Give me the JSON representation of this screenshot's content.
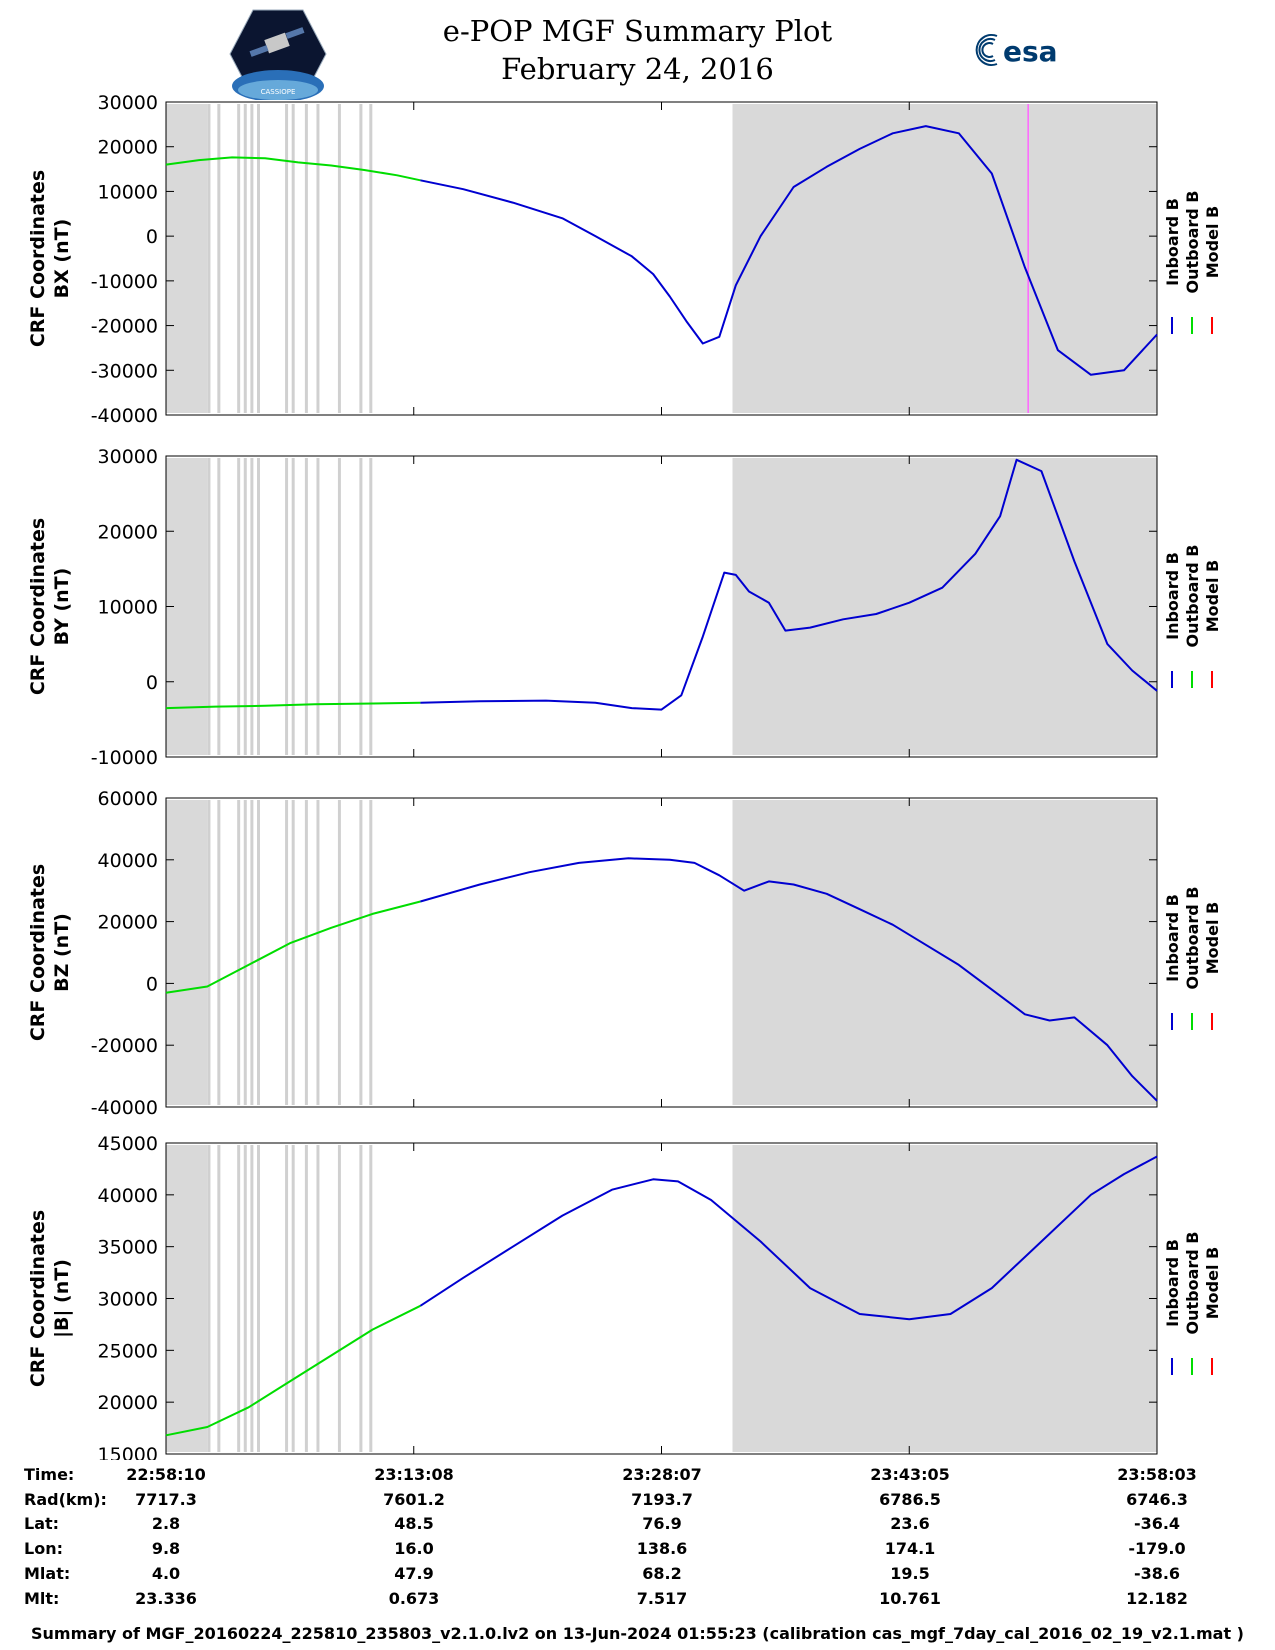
{
  "header": {
    "title_line1": "e-POP MGF Summary Plot",
    "title_line2": "February 24, 2016",
    "logo_left_text": "CASSIOPE",
    "logo_right_text": "esa"
  },
  "colors": {
    "inboard": "#0000d0",
    "outboard": "#00dd00",
    "model": "#ff0000",
    "shade": "#d9d9d9",
    "vline": "#d0d0d0",
    "marker": "#ff66ff"
  },
  "chart_data": [
    {
      "type": "line",
      "name": "bx",
      "ylabel_line1": "CRF Coordinates",
      "ylabel_line2": "BX (nT)",
      "ylim": [
        -40000,
        30000
      ],
      "yticks": [
        30000,
        20000,
        10000,
        0,
        -10000,
        -20000,
        -30000,
        -40000
      ],
      "legend": [
        "Inboard B",
        "Outboard B",
        "Model B"
      ],
      "outboard": {
        "t": [
          0,
          2,
          4,
          6,
          8,
          10,
          12,
          14,
          15.4
        ],
        "y": [
          16000,
          17000,
          17600,
          17400,
          16500,
          15800,
          14800,
          13600,
          12500
        ]
      },
      "inboard": {
        "t": [
          15.4,
          18,
          21,
          24,
          26,
          28.2,
          29.5,
          30.5,
          31.5,
          32.5,
          33.5,
          34.5,
          36,
          38,
          40,
          42,
          44,
          46,
          48,
          50,
          52,
          54,
          56,
          58,
          60
        ],
        "y": [
          12500,
          10500,
          7500,
          4000,
          0,
          -4500,
          -8500,
          -13500,
          -19000,
          -24000,
          -22500,
          -11000,
          0,
          11000,
          15500,
          19500,
          23000,
          24600,
          23000,
          14000,
          -7000,
          -25500,
          -31000,
          -30000,
          -22000
        ]
      }
    },
    {
      "type": "line",
      "name": "by",
      "ylabel_line1": "CRF Coordinates",
      "ylabel_line2": "BY (nT)",
      "ylim": [
        -10000,
        30000
      ],
      "yticks": [
        30000,
        20000,
        10000,
        0,
        -10000
      ],
      "legend": [
        "Inboard B",
        "Outboard B",
        "Model B"
      ],
      "outboard": {
        "t": [
          0,
          3,
          6,
          9,
          12,
          15.4
        ],
        "y": [
          -3500,
          -3300,
          -3200,
          -3000,
          -2900,
          -2800
        ]
      },
      "inboard": {
        "t": [
          15.4,
          19,
          23,
          26,
          28.2,
          30,
          31.2,
          32.5,
          33.8,
          34.5,
          35.3,
          36.5,
          37.5,
          39,
          41,
          43,
          45,
          47,
          49,
          50.5,
          51.5,
          53,
          55,
          57,
          58.5,
          60
        ],
        "y": [
          -2800,
          -2600,
          -2500,
          -2800,
          -3500,
          -3700,
          -1800,
          6000,
          14500,
          14200,
          12000,
          10500,
          6800,
          7200,
          8300,
          9000,
          10500,
          12500,
          17000,
          22000,
          29500,
          28000,
          16000,
          5000,
          1500,
          -1200
        ]
      }
    },
    {
      "type": "line",
      "name": "bz",
      "ylabel_line1": "CRF Coordinates",
      "ylabel_line2": "BZ (nT)",
      "ylim": [
        -40000,
        60000
      ],
      "yticks": [
        60000,
        40000,
        20000,
        0,
        -20000,
        -40000
      ],
      "legend": [
        "Inboard B",
        "Outboard B",
        "Model B"
      ],
      "outboard": {
        "t": [
          0,
          2.5,
          5,
          7.5,
          10,
          12.5,
          15.4
        ],
        "y": [
          -3000,
          -1000,
          6000,
          13000,
          18000,
          22500,
          26500
        ]
      },
      "inboard": {
        "t": [
          15.4,
          19,
          22,
          25,
          28,
          30.5,
          32,
          33.5,
          35,
          36.5,
          38,
          40,
          42,
          44,
          46,
          48,
          50,
          52,
          53.5,
          55,
          57,
          58.5,
          60
        ],
        "y": [
          26500,
          32000,
          36000,
          39000,
          40500,
          40000,
          39000,
          35000,
          30000,
          33000,
          32000,
          29000,
          24000,
          19000,
          12500,
          6000,
          -2000,
          -10000,
          -12000,
          -11000,
          -20000,
          -30000,
          -38000
        ]
      }
    },
    {
      "type": "line",
      "name": "btot",
      "ylabel_line1": "CRF Coordinates",
      "ylabel_line2": "|B| (nT)",
      "ylim": [
        15000,
        45000
      ],
      "yticks": [
        45000,
        40000,
        35000,
        30000,
        25000,
        20000,
        15000
      ],
      "legend": [
        "Inboard B",
        "Outboard B",
        "Model B"
      ],
      "outboard": {
        "t": [
          0,
          2.5,
          5,
          7.5,
          10,
          12.5,
          15.4
        ],
        "y": [
          16800,
          17600,
          19500,
          22000,
          24500,
          27000,
          29300
        ]
      },
      "inboard": {
        "t": [
          15.4,
          18,
          21,
          24,
          27,
          29.5,
          31,
          33,
          36,
          39,
          42,
          45,
          47.5,
          50,
          53,
          56,
          58,
          60
        ],
        "y": [
          29300,
          32000,
          35000,
          38000,
          40500,
          41500,
          41300,
          39500,
          35500,
          31000,
          28500,
          28000,
          28500,
          31000,
          35500,
          40000,
          42000,
          43700
        ]
      }
    }
  ],
  "time_axis": {
    "range_minutes": [
      0,
      60
    ],
    "shade_regions": [
      [
        0,
        2.5
      ],
      [
        34.3,
        60
      ]
    ],
    "vlines": [
      2.6,
      3.2,
      4.4,
      4.8,
      5.2,
      5.6,
      7.3,
      7.7,
      8.5,
      9.2,
      10.5,
      11.8,
      12.4
    ],
    "tick_positions": [
      0,
      15,
      30,
      45,
      60
    ],
    "marker_bx": 52.2
  },
  "info": {
    "labels": [
      "Time:",
      "Rad(km):",
      "Lat:",
      "Lon:",
      "Mlat:",
      "Mlt:"
    ],
    "columns": [
      [
        "22:58:10",
        "7717.3",
        "2.8",
        "9.8",
        "4.0",
        "23.336"
      ],
      [
        "23:13:08",
        "7601.2",
        "48.5",
        "16.0",
        "47.9",
        "0.673"
      ],
      [
        "23:28:07",
        "7193.7",
        "76.9",
        "138.6",
        "68.2",
        "7.517"
      ],
      [
        "23:43:05",
        "6786.5",
        "23.6",
        "174.1",
        "19.5",
        "10.761"
      ],
      [
        "23:58:03",
        "6746.3",
        "-36.4",
        "-179.0",
        "-38.6",
        "12.182"
      ]
    ]
  },
  "footer": "Summary of MGF_20160224_225810_235803_v2.1.0.lv2 on 13-Jun-2024 01:55:23 (calibration cas_mgf_7day_cal_2016_02_19_v2.1.mat )"
}
